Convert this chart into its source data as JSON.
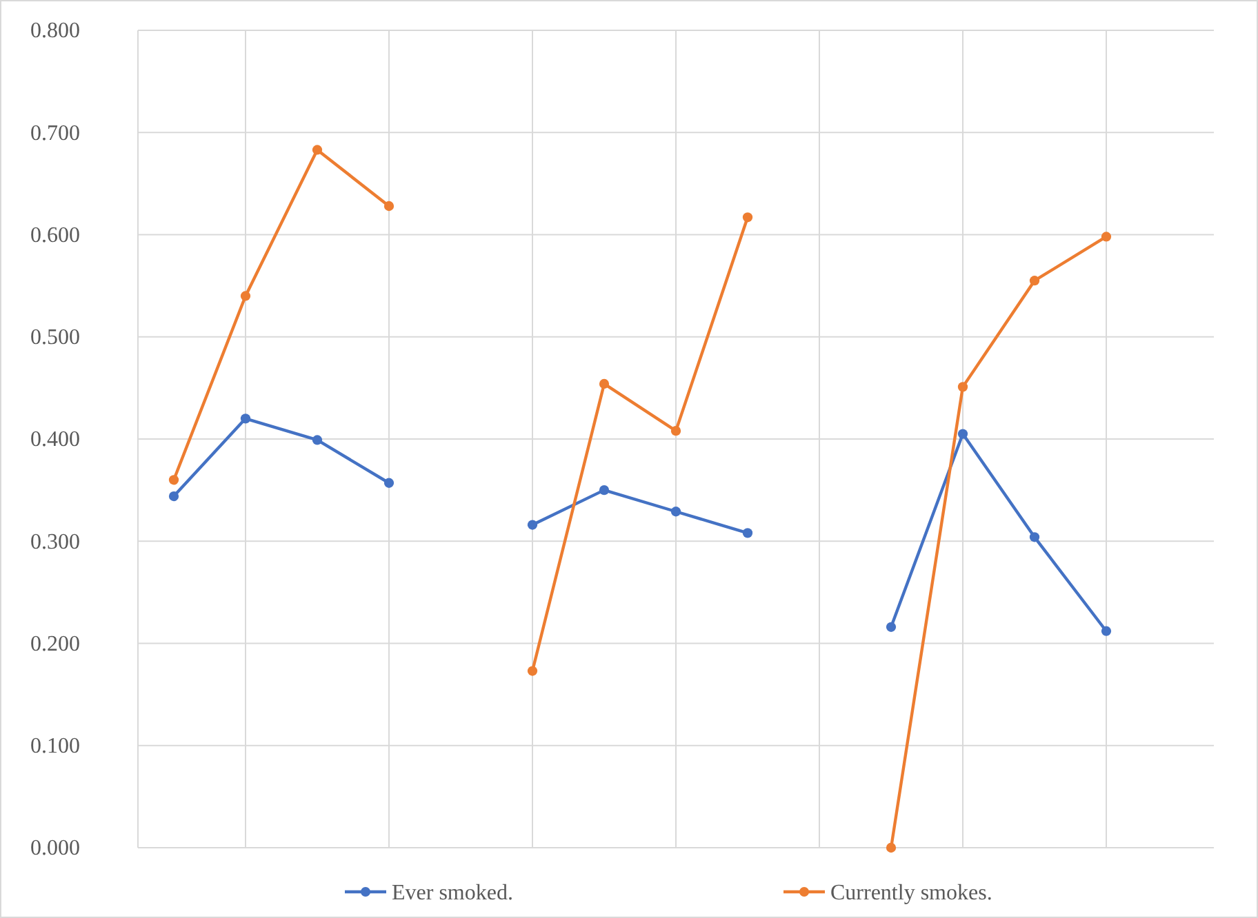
{
  "chart_data": {
    "type": "line",
    "categories": [
      null,
      null,
      null,
      null,
      null,
      null,
      null,
      null,
      null,
      null,
      null,
      null,
      null,
      null,
      null
    ],
    "series": [
      {
        "name": "Ever smoked.",
        "color": "#4472c4",
        "values": [
          0.344,
          0.42,
          0.399,
          0.357,
          null,
          0.316,
          0.35,
          0.329,
          0.308,
          null,
          0.216,
          0.405,
          0.304,
          0.212,
          null
        ]
      },
      {
        "name": "Currently smokes.",
        "color": "#ed7d31",
        "values": [
          0.36,
          0.54,
          0.683,
          0.628,
          null,
          0.173,
          0.454,
          0.408,
          0.617,
          null,
          0.0,
          0.451,
          0.555,
          0.598,
          null
        ]
      }
    ],
    "ylim": [
      0,
      0.8
    ],
    "yticks": [
      {
        "value": 0,
        "label": "0.000"
      },
      {
        "value": 0.1,
        "label": "0.100"
      },
      {
        "value": 0.2,
        "label": "0.200"
      },
      {
        "value": 0.3,
        "label": "0.300"
      },
      {
        "value": 0.4,
        "label": "0.400"
      },
      {
        "value": 0.5,
        "label": "0.500"
      },
      {
        "value": 0.6,
        "label": "0.600"
      },
      {
        "value": 0.7,
        "label": "0.700"
      },
      {
        "value": 0.8,
        "label": "0.800"
      }
    ],
    "grid": true,
    "legend": "bottom",
    "marker": "circle",
    "line_style": "solid"
  }
}
